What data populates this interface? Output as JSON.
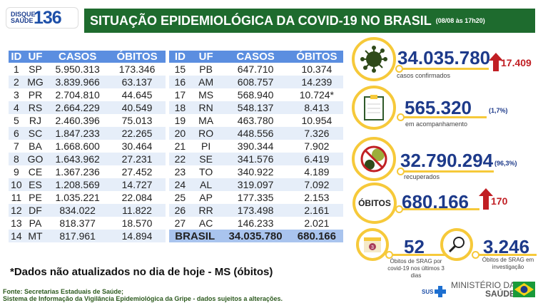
{
  "logo": {
    "top": "DISQUE",
    "bottom": "SAÚDE",
    "number": "136"
  },
  "header": {
    "title": "SITUAÇÃO EPIDEMIOLÓGICA DA COVID-19 NO BRASIL",
    "date": "(08/08 às 17h20)"
  },
  "table": {
    "columns": [
      "ID",
      "UF",
      "CASOS",
      "ÓBITOS"
    ],
    "rows_left": [
      [
        "1",
        "SP",
        "5.950.313",
        "173.346"
      ],
      [
        "2",
        "MG",
        "3.839.966",
        "63.137"
      ],
      [
        "3",
        "PR",
        "2.704.810",
        "44.645"
      ],
      [
        "4",
        "RS",
        "2.664.229",
        "40.549"
      ],
      [
        "5",
        "RJ",
        "2.460.396",
        "75.013"
      ],
      [
        "6",
        "SC",
        "1.847.233",
        "22.265"
      ],
      [
        "7",
        "BA",
        "1.668.600",
        "30.464"
      ],
      [
        "8",
        "GO",
        "1.643.962",
        "27.231"
      ],
      [
        "9",
        "CE",
        "1.367.236",
        "27.452"
      ],
      [
        "10",
        "ES",
        "1.208.569",
        "14.727"
      ],
      [
        "11",
        "PE",
        "1.035.221",
        "22.084"
      ],
      [
        "12",
        "DF",
        "834.022",
        "11.822"
      ],
      [
        "13",
        "PA",
        "818.377",
        "18.570"
      ],
      [
        "14",
        "MT",
        "817.961",
        "14.894"
      ]
    ],
    "rows_right": [
      [
        "15",
        "PB",
        "647.710",
        "10.374"
      ],
      [
        "16",
        "AM",
        "608.757",
        "14.239"
      ],
      [
        "17",
        "MS",
        "568.940",
        "10.724*"
      ],
      [
        "18",
        "RN",
        "548.137",
        "8.413"
      ],
      [
        "19",
        "MA",
        "463.780",
        "10.954"
      ],
      [
        "20",
        "RO",
        "448.556",
        "7.326"
      ],
      [
        "21",
        "PI",
        "390.344",
        "7.902"
      ],
      [
        "22",
        "SE",
        "341.576",
        "6.419"
      ],
      [
        "23",
        "TO",
        "340.922",
        "4.189"
      ],
      [
        "24",
        "AL",
        "319.097",
        "7.092"
      ],
      [
        "25",
        "AP",
        "177.335",
        "2.153"
      ],
      [
        "26",
        "RR",
        "173.498",
        "2.161"
      ],
      [
        "27",
        "AC",
        "146.233",
        "2.021"
      ]
    ],
    "total": {
      "label": "BRASIL",
      "casos": "34.035.780",
      "obitos": "680.166"
    }
  },
  "note": "*Dados não atualizados no dia de hoje - MS (óbitos)",
  "source": {
    "line1": "Fonte: Secretarias Estaduais de Saúde;",
    "line2": "Sistema de Informação da Vigilância Epidemiológica da Gripe - dados sujeitos a alterações."
  },
  "stats": {
    "confirmados": {
      "value": "34.035.780",
      "delta": "17.409",
      "label": "casos confirmados",
      "icon": "virus-icon"
    },
    "acompanhamento": {
      "value": "565.320",
      "pct": "(1,7%)",
      "label": "em acompanhamento",
      "icon": "clipboard-icon"
    },
    "recuperados": {
      "value": "32.790.294",
      "pct": "(96,3%)",
      "label": "recuperados",
      "icon": "no-virus-icon"
    },
    "obitos": {
      "badge": "ÓBITOS",
      "value": "680.166",
      "delta": "170"
    },
    "srag3": {
      "value": "52",
      "label": "Óbitos de SRAG por covid-19 nos últimos 3 dias",
      "icon": "calendar-icon",
      "cal": "3"
    },
    "investigacao": {
      "value": "3.246",
      "label": "Óbitos de SRAG em investigação",
      "icon": "magnifier-icon"
    }
  },
  "footer": {
    "sus": "SUS",
    "ministry1": "MINISTÉRIO DA",
    "ministry2": "SAÚDE"
  },
  "colors": {
    "green": "#1e6b2e",
    "blue_header": "#5b8ee0",
    "yellow": "#f6c93a",
    "red": "#c11f24",
    "navy": "#1d3a8a"
  }
}
